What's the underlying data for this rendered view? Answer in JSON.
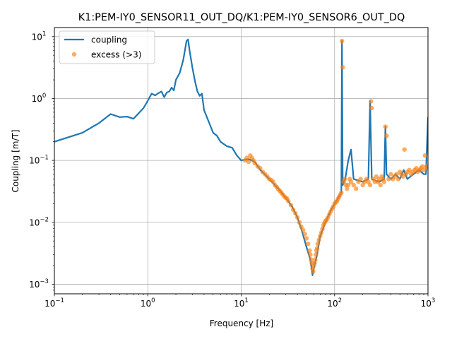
{
  "chart_data": {
    "type": "line",
    "title": "K1:PEM-IY0_SENSOR11_OUT_DQ/K1:PEM-IY0_SENSOR6_OUT_DQ",
    "xlabel": "Frequency [Hz]",
    "ylabel": "Coupling [m/T]",
    "xscale": "log",
    "yscale": "log",
    "xlim": [
      0.1,
      1000
    ],
    "ylim": [
      0.0007,
      14
    ],
    "grid": true,
    "legend_position": "top-left",
    "x_ticks": [
      {
        "value": 0.1,
        "base": "10",
        "exp": "−1"
      },
      {
        "value": 1,
        "base": "10",
        "exp": "0"
      },
      {
        "value": 10,
        "base": "10",
        "exp": "1"
      },
      {
        "value": 100,
        "base": "10",
        "exp": "2"
      },
      {
        "value": 1000,
        "base": "10",
        "exp": "3"
      }
    ],
    "y_ticks": [
      {
        "value": 0.001,
        "base": "10",
        "exp": "−3"
      },
      {
        "value": 0.01,
        "base": "10",
        "exp": "−2"
      },
      {
        "value": 0.1,
        "base": "10",
        "exp": "−1"
      },
      {
        "value": 1,
        "base": "10",
        "exp": "0"
      },
      {
        "value": 10,
        "base": "10",
        "exp": "1"
      }
    ],
    "series": [
      {
        "name": "coupling",
        "style": "line",
        "color": "#1f77b4",
        "x": [
          0.1,
          0.2,
          0.3,
          0.4,
          0.5,
          0.6,
          0.7,
          0.8,
          0.9,
          1.0,
          1.1,
          1.2,
          1.3,
          1.4,
          1.5,
          1.6,
          1.7,
          1.8,
          1.9,
          2.0,
          2.2,
          2.4,
          2.6,
          2.7,
          2.8,
          3.0,
          3.2,
          3.4,
          3.6,
          3.8,
          4.0,
          4.5,
          5.0,
          5.5,
          6.0,
          7.0,
          8.0,
          9.0,
          10,
          12,
          14,
          16,
          20,
          25,
          30,
          35,
          40,
          45,
          50,
          55,
          58,
          60,
          65,
          70,
          80,
          90,
          100,
          110,
          118,
          120,
          122,
          130,
          140,
          150,
          160,
          200,
          230,
          240,
          250,
          300,
          340,
          350,
          360,
          400,
          450,
          500,
          550,
          600,
          700,
          800,
          900,
          950,
          1000
        ],
        "y": [
          0.2,
          0.28,
          0.4,
          0.56,
          0.5,
          0.51,
          0.47,
          0.58,
          0.7,
          0.92,
          1.2,
          1.12,
          1.22,
          1.3,
          1.05,
          1.25,
          1.3,
          1.5,
          1.35,
          2.0,
          2.6,
          4.2,
          8.5,
          9.0,
          6.0,
          3.2,
          1.9,
          1.3,
          1.1,
          1.2,
          0.65,
          0.42,
          0.28,
          0.25,
          0.2,
          0.17,
          0.16,
          0.12,
          0.1,
          0.105,
          0.095,
          0.07,
          0.05,
          0.035,
          0.025,
          0.018,
          0.012,
          0.007,
          0.004,
          0.0025,
          0.0014,
          0.0018,
          0.003,
          0.006,
          0.01,
          0.015,
          0.02,
          0.025,
          0.03,
          8.5,
          0.04,
          0.05,
          0.1,
          0.15,
          0.05,
          0.045,
          0.05,
          0.9,
          0.05,
          0.045,
          0.05,
          0.35,
          0.06,
          0.05,
          0.06,
          0.05,
          0.07,
          0.05,
          0.06,
          0.07,
          0.06,
          0.06,
          0.5
        ]
      },
      {
        "name": "excess (>3)",
        "style": "markers",
        "color": "#ff7f0e",
        "x": [
          11,
          11.5,
          12,
          12.5,
          13,
          13.5,
          14,
          15,
          16,
          17,
          18,
          19,
          20,
          21,
          22,
          23,
          24,
          25,
          26,
          27,
          28,
          29,
          30,
          31,
          32,
          34,
          36,
          38,
          40,
          42,
          44,
          46,
          48,
          50,
          52,
          54,
          55,
          56,
          57,
          58,
          59,
          60,
          61,
          62,
          63,
          64,
          65,
          66,
          68,
          70,
          72,
          74,
          76,
          78,
          80,
          82,
          85,
          88,
          91,
          94,
          97,
          100,
          103,
          106,
          109,
          112,
          115,
          118,
          120,
          122,
          125,
          128,
          132,
          136,
          140,
          145,
          150,
          160,
          170,
          180,
          190,
          200,
          210,
          220,
          230,
          240,
          245,
          250,
          260,
          270,
          280,
          290,
          300,
          310,
          320,
          330,
          340,
          350,
          360,
          380,
          400,
          420,
          440,
          460,
          480,
          500,
          520,
          540,
          560,
          580,
          600,
          630,
          660,
          690,
          720,
          750,
          780,
          810,
          840,
          870,
          900,
          930,
          960,
          990
        ],
        "y": [
          0.1,
          0.11,
          0.095,
          0.12,
          0.11,
          0.1,
          0.09,
          0.08,
          0.075,
          0.065,
          0.06,
          0.055,
          0.05,
          0.048,
          0.045,
          0.04,
          0.037,
          0.034,
          0.032,
          0.03,
          0.028,
          0.026,
          0.025,
          0.024,
          0.022,
          0.019,
          0.016,
          0.014,
          0.012,
          0.01,
          0.0085,
          0.0075,
          0.0065,
          0.0055,
          0.0045,
          0.0035,
          0.003,
          0.0025,
          0.0022,
          0.0018,
          0.0016,
          0.002,
          0.0022,
          0.0025,
          0.003,
          0.0035,
          0.0038,
          0.0045,
          0.0052,
          0.006,
          0.0068,
          0.0078,
          0.009,
          0.0098,
          0.0105,
          0.011,
          0.012,
          0.0135,
          0.015,
          0.0165,
          0.018,
          0.02,
          0.021,
          0.022,
          0.024,
          0.026,
          0.028,
          0.03,
          8.5,
          3.2,
          0.045,
          0.05,
          0.04,
          0.035,
          0.04,
          0.05,
          0.045,
          0.04,
          0.035,
          0.045,
          0.05,
          0.04,
          0.045,
          0.05,
          0.045,
          0.04,
          0.9,
          0.7,
          0.05,
          0.045,
          0.055,
          0.045,
          0.05,
          0.04,
          0.055,
          0.05,
          0.045,
          0.35,
          0.25,
          0.05,
          0.06,
          0.05,
          0.055,
          0.06,
          0.05,
          0.065,
          0.06,
          0.055,
          0.15,
          0.06,
          0.065,
          0.07,
          0.06,
          0.065,
          0.07,
          0.075,
          0.065,
          0.07,
          0.075,
          0.08,
          0.07,
          0.12,
          0.08,
          0.075
        ]
      }
    ]
  }
}
